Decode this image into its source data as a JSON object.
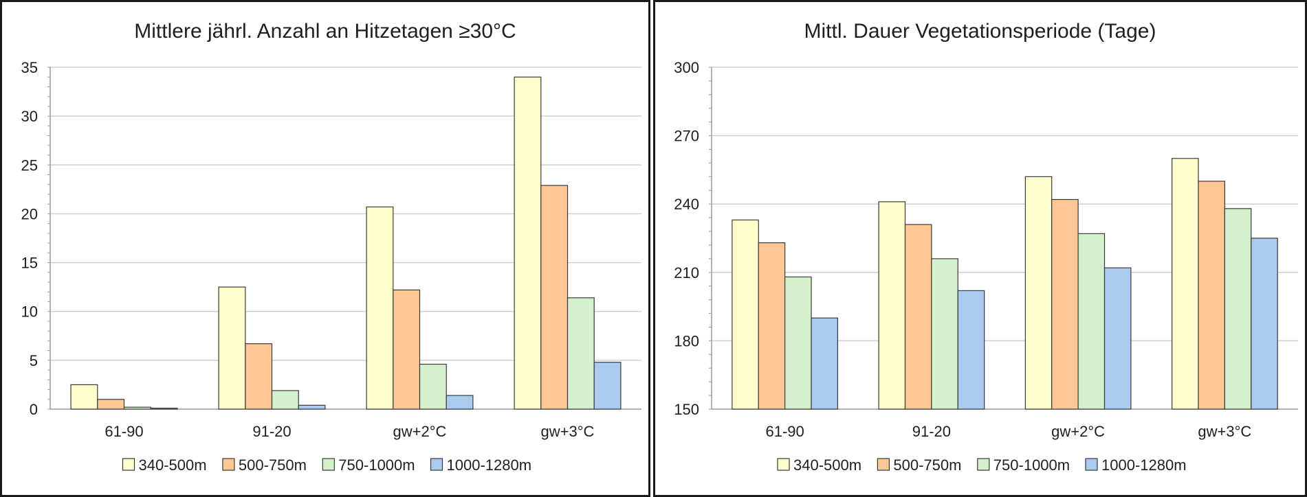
{
  "colors": {
    "series": [
      "#ffffcc",
      "#fdc895",
      "#d4f0cc",
      "#a9cbef"
    ],
    "grid": "#d0d0d0",
    "axis": "#9a9a9a",
    "bar_stroke": "#3a3a3a"
  },
  "chart_data": [
    {
      "type": "bar",
      "title": "Mittlere jährl. Anzahl an Hitzetagen ≥30°C",
      "xlabel": "",
      "ylabel": "",
      "categories": [
        "61-90",
        "91-20",
        "gw+2°C",
        "gw+3°C"
      ],
      "ylim": [
        0,
        35
      ],
      "yticks": [
        0,
        5,
        10,
        15,
        20,
        25,
        30,
        35
      ],
      "grid": true,
      "legend": "bottom",
      "series": [
        {
          "name": "340-500m",
          "values": [
            2.5,
            12.5,
            20.7,
            34.0
          ]
        },
        {
          "name": "500-750m",
          "values": [
            1.0,
            6.7,
            12.2,
            22.9
          ]
        },
        {
          "name": "750-1000m",
          "values": [
            0.2,
            1.9,
            4.6,
            11.4
          ]
        },
        {
          "name": "1000-1280m",
          "values": [
            0.1,
            0.4,
            1.4,
            4.8
          ]
        }
      ]
    },
    {
      "type": "bar",
      "title": "Mittl. Dauer Vegetationsperiode (Tage)",
      "xlabel": "",
      "ylabel": "",
      "categories": [
        "61-90",
        "91-20",
        "gw+2°C",
        "gw+3°C"
      ],
      "ylim": [
        150,
        300
      ],
      "yticks": [
        150,
        180,
        210,
        240,
        270,
        300
      ],
      "grid": true,
      "legend": "bottom",
      "series": [
        {
          "name": "340-500m",
          "values": [
            233,
            241,
            252,
            260
          ]
        },
        {
          "name": "500-750m",
          "values": [
            223,
            231,
            242,
            250
          ]
        },
        {
          "name": "750-1000m",
          "values": [
            208,
            216,
            227,
            238
          ]
        },
        {
          "name": "1000-1280m",
          "values": [
            190,
            202,
            212,
            225
          ]
        }
      ]
    }
  ]
}
